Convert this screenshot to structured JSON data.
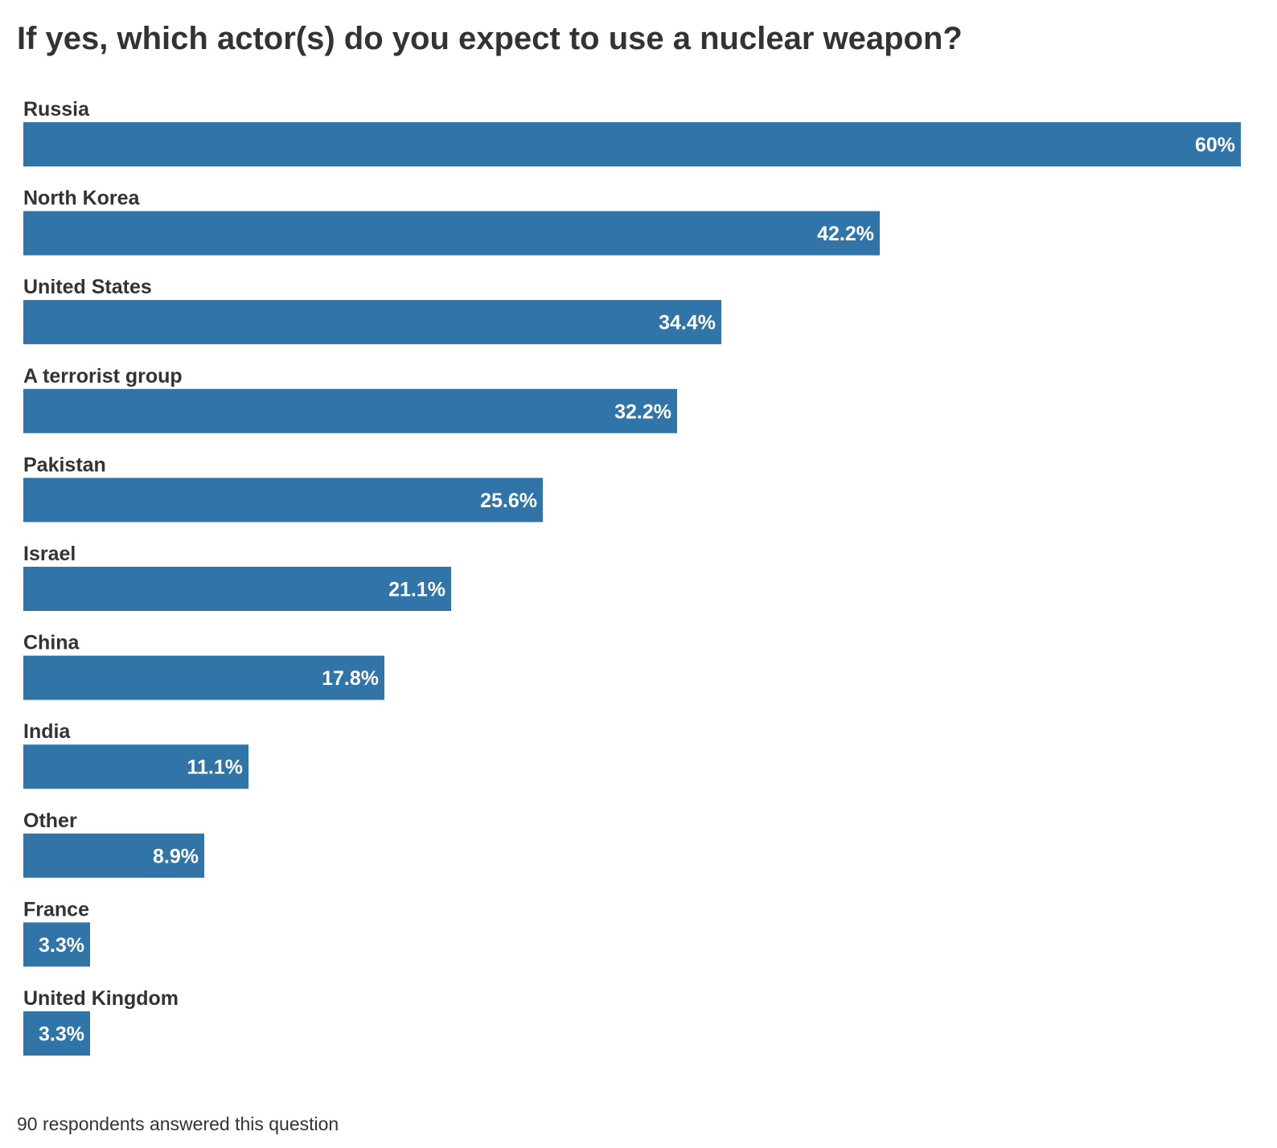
{
  "chart_data": {
    "type": "bar",
    "orientation": "horizontal",
    "title": "If yes, which actor(s) do you expect to use a nuclear weapon?",
    "categories": [
      "Russia",
      "North Korea",
      "United States",
      "A terrorist group",
      "Pakistan",
      "Israel",
      "China",
      "India",
      "Other",
      "France",
      "United Kingdom"
    ],
    "values": [
      60,
      42.2,
      34.4,
      32.2,
      25.6,
      21.1,
      17.8,
      11.1,
      8.9,
      3.3,
      3.3
    ],
    "value_labels": [
      "60%",
      "42.2%",
      "34.4%",
      "32.2%",
      "25.6%",
      "21.1%",
      "17.8%",
      "11.1%",
      "8.9%",
      "3.3%",
      "3.3%"
    ],
    "unit": "%",
    "xlim": [
      0,
      60
    ],
    "grid": false,
    "legend": "none",
    "bar_color": "#3074a8"
  },
  "footnote": "90 respondents answered this question"
}
